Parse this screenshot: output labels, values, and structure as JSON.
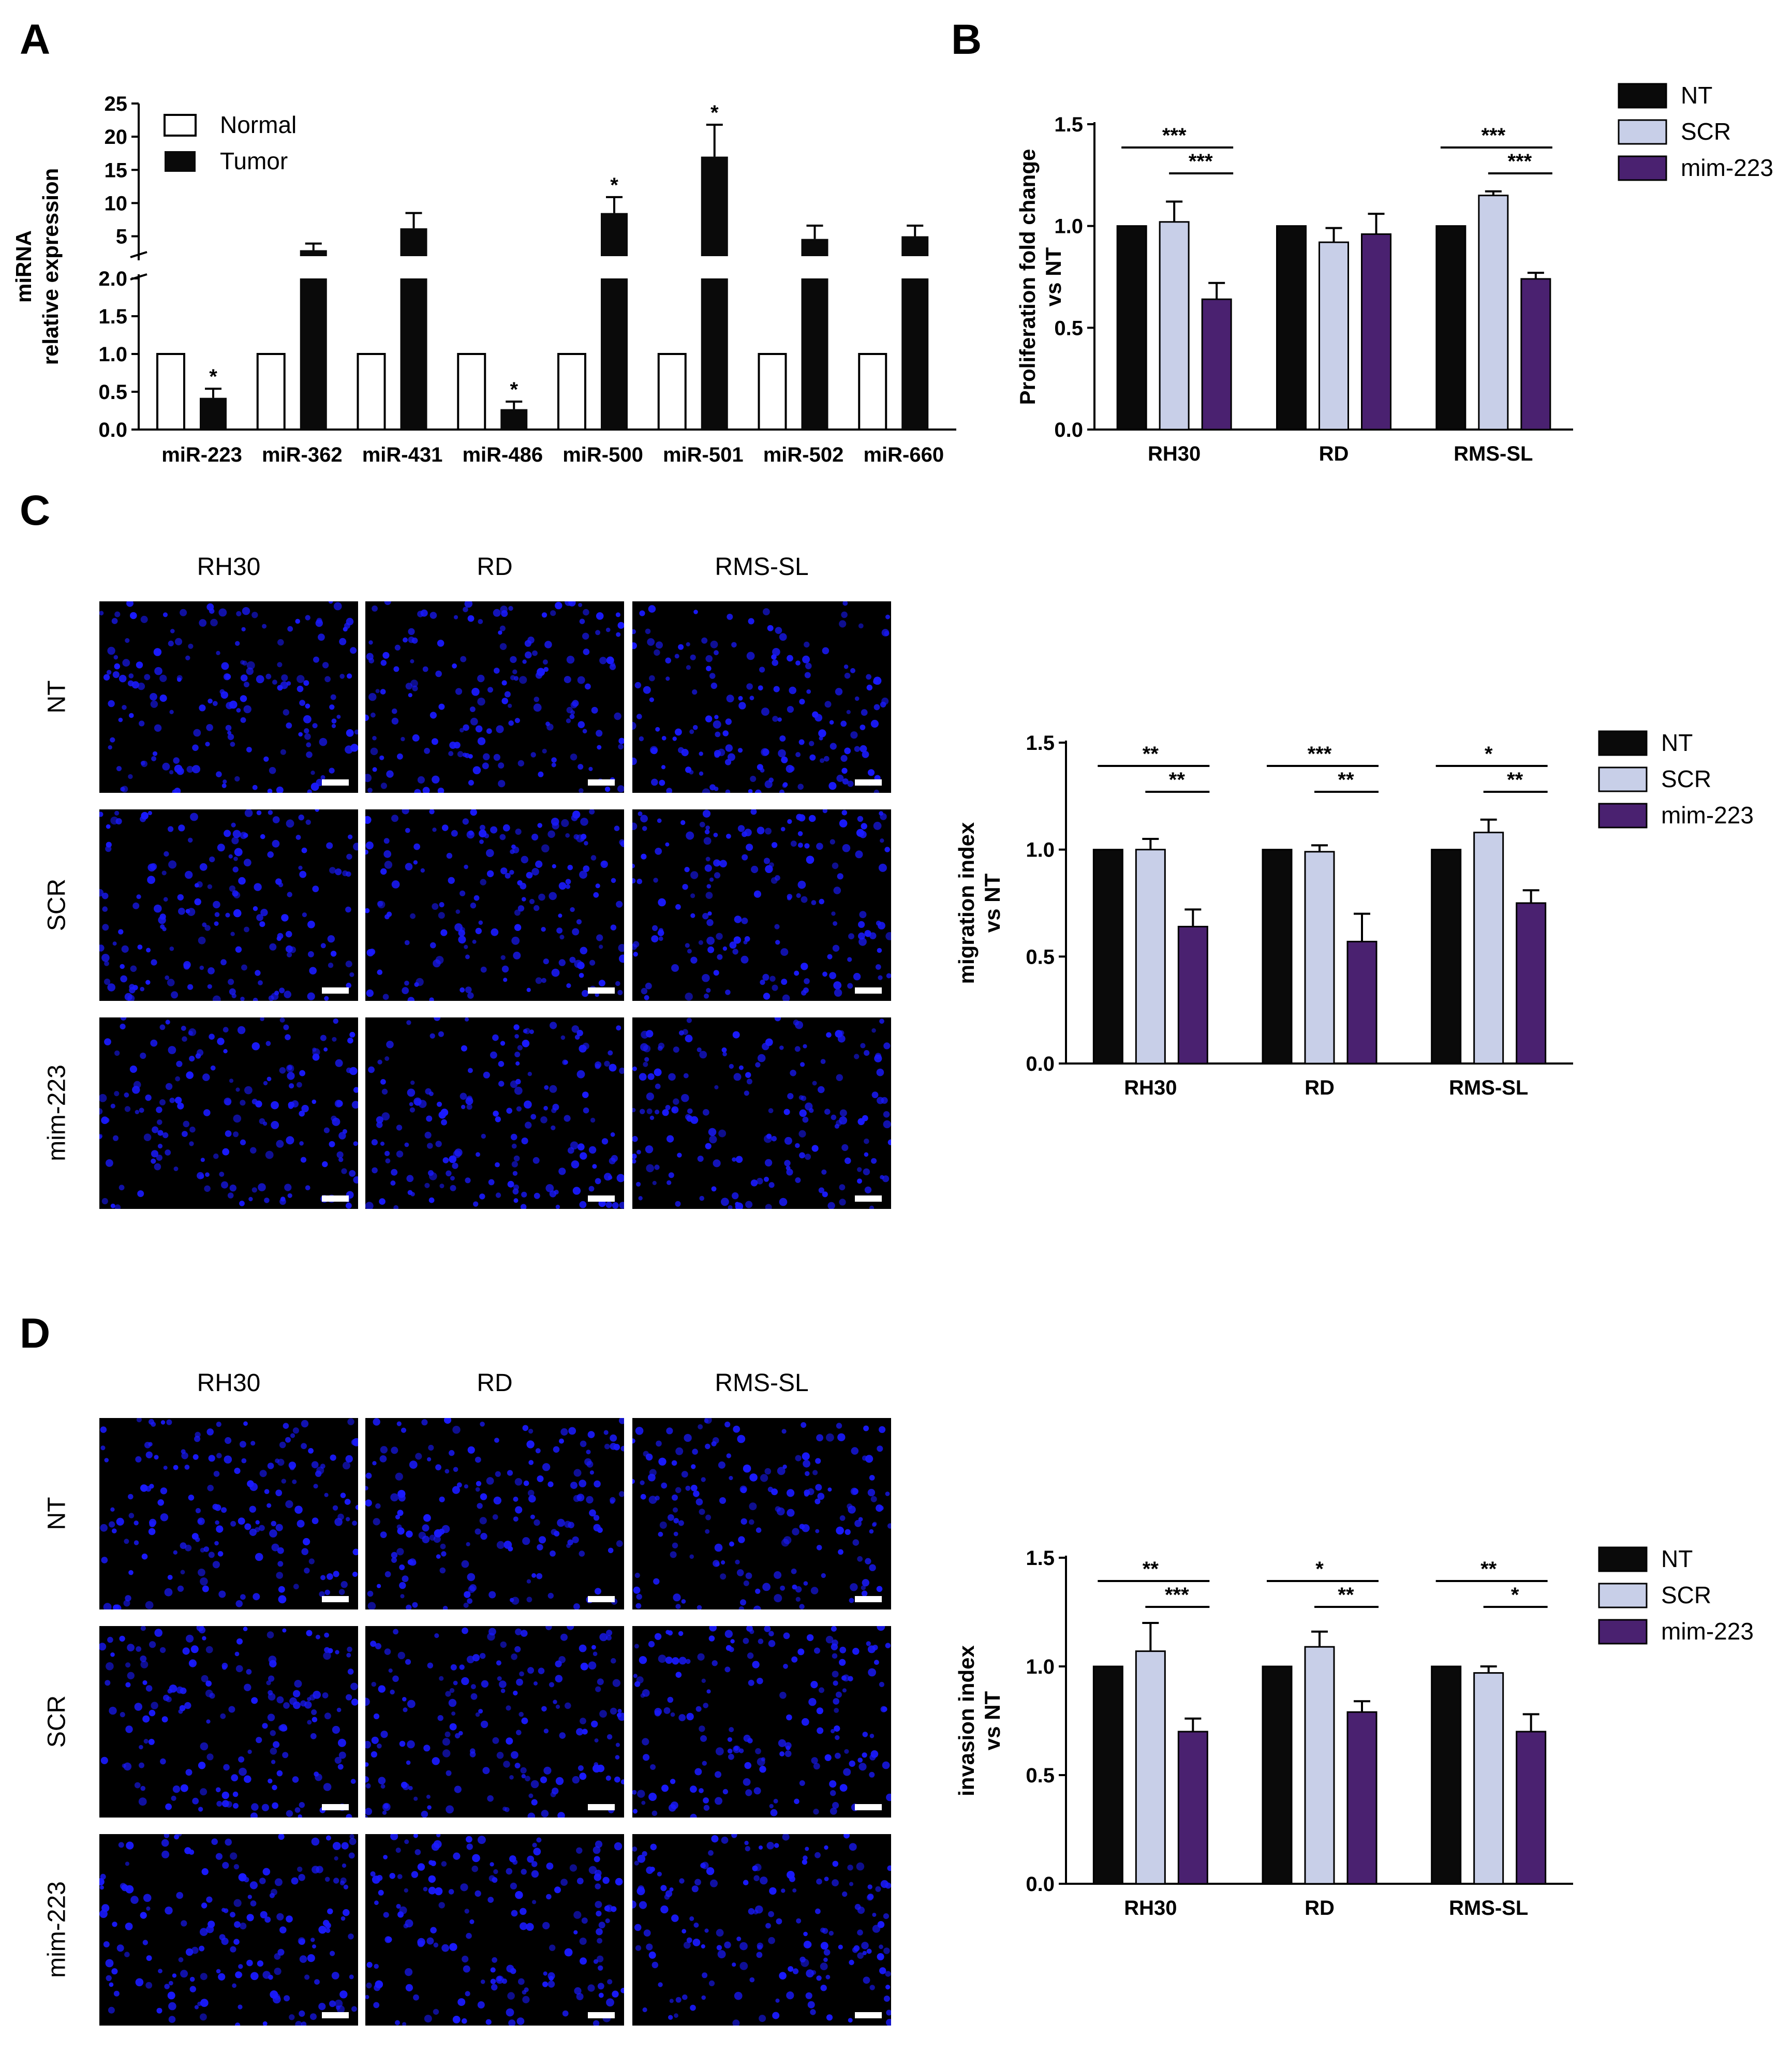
{
  "panels": {
    "a": "A",
    "b": "B",
    "c": "C",
    "d": "D"
  },
  "colors": {
    "nt": "#0a0a0a",
    "scr": "#c8cfe8",
    "mim": "#4a2170",
    "tumor": "#0a0a0a",
    "normal": "#ffffff",
    "cell": "#1a1aff"
  },
  "microscopy": {
    "columns": [
      "RH30",
      "RD",
      "RMS-SL"
    ],
    "rows": [
      "NT",
      "SCR",
      "mim-223"
    ]
  },
  "chart_data": [
    {
      "panel": "A",
      "type": "bar",
      "ylabel": "miRNA\nrelative expression",
      "broken_axis": true,
      "ylim_lower": [
        0,
        2.0
      ],
      "ylim_upper": [
        2.0,
        25
      ],
      "yticks_lower": [
        "0.0",
        "0.5",
        "1.0",
        "1.5",
        "2.0"
      ],
      "yticks_upper": [
        "5",
        "10",
        "15",
        "20",
        "25"
      ],
      "categories": [
        "miR-223",
        "miR-362",
        "miR-431",
        "miR-486",
        "miR-500",
        "miR-501",
        "miR-502",
        "miR-660"
      ],
      "series": [
        {
          "name": "Normal",
          "values": [
            1,
            1,
            1,
            1,
            1,
            1,
            1,
            1
          ],
          "errors": [
            0,
            0,
            0,
            0,
            0,
            0,
            0,
            0
          ]
        },
        {
          "name": "Tumor",
          "values": [
            0.42,
            2.9,
            6.2,
            0.27,
            8.5,
            17.0,
            4.6,
            5.0
          ],
          "errors": [
            0.12,
            1.0,
            2.3,
            0.1,
            2.4,
            4.8,
            2.0,
            1.6
          ]
        }
      ],
      "annotations": [
        "*",
        "",
        "",
        "*",
        "*",
        "*",
        "",
        ""
      ]
    },
    {
      "panel": "B",
      "type": "bar",
      "ylabel": "Proliferation fold change\nvs NT",
      "ylim": [
        0,
        1.5
      ],
      "yticks": [
        "0.0",
        "0.5",
        "1.0",
        "1.5"
      ],
      "categories": [
        "RH30",
        "RD",
        "RMS-SL"
      ],
      "series": [
        {
          "name": "NT",
          "values": [
            1.0,
            1.0,
            1.0
          ],
          "errors": [
            0,
            0,
            0
          ]
        },
        {
          "name": "SCR",
          "values": [
            1.02,
            0.92,
            1.15
          ],
          "errors": [
            0.1,
            0.07,
            0.02
          ]
        },
        {
          "name": "mim-223",
          "values": [
            0.64,
            0.96,
            0.74
          ],
          "errors": [
            0.08,
            0.1,
            0.03
          ]
        }
      ],
      "significance": [
        {
          "group": 0,
          "outer": "***",
          "inner": "***"
        },
        {
          "group": 2,
          "outer": "***",
          "inner": "***"
        }
      ]
    },
    {
      "panel": "C",
      "type": "bar",
      "ylabel": "migration index\nvs NT",
      "ylim": [
        0,
        1.5
      ],
      "yticks": [
        "0.0",
        "0.5",
        "1.0",
        "1.5"
      ],
      "categories": [
        "RH30",
        "RD",
        "RMS-SL"
      ],
      "series": [
        {
          "name": "NT",
          "values": [
            1.0,
            1.0,
            1.0
          ],
          "errors": [
            0,
            0,
            0
          ]
        },
        {
          "name": "SCR",
          "values": [
            1.0,
            0.99,
            1.08
          ],
          "errors": [
            0.05,
            0.03,
            0.06
          ]
        },
        {
          "name": "mim-223",
          "values": [
            0.64,
            0.57,
            0.75
          ],
          "errors": [
            0.08,
            0.13,
            0.06
          ]
        }
      ],
      "significance": [
        {
          "group": 0,
          "outer": "**",
          "inner": "**"
        },
        {
          "group": 1,
          "outer": "***",
          "inner": "**"
        },
        {
          "group": 2,
          "outer": "*",
          "inner": "**"
        }
      ]
    },
    {
      "panel": "D",
      "type": "bar",
      "ylabel": "invasion index\nvs NT",
      "ylim": [
        0,
        1.5
      ],
      "yticks": [
        "0.0",
        "0.5",
        "1.0",
        "1.5"
      ],
      "categories": [
        "RH30",
        "RD",
        "RMS-SL"
      ],
      "series": [
        {
          "name": "NT",
          "values": [
            1.0,
            1.0,
            1.0
          ],
          "errors": [
            0,
            0,
            0
          ]
        },
        {
          "name": "SCR",
          "values": [
            1.07,
            1.09,
            0.97
          ],
          "errors": [
            0.13,
            0.07,
            0.03
          ]
        },
        {
          "name": "mim-223",
          "values": [
            0.7,
            0.79,
            0.7
          ],
          "errors": [
            0.06,
            0.05,
            0.08
          ]
        }
      ],
      "significance": [
        {
          "group": 0,
          "outer": "**",
          "inner": "***"
        },
        {
          "group": 1,
          "outer": "*",
          "inner": "**"
        },
        {
          "group": 2,
          "outer": "**",
          "inner": "*"
        }
      ]
    }
  ]
}
